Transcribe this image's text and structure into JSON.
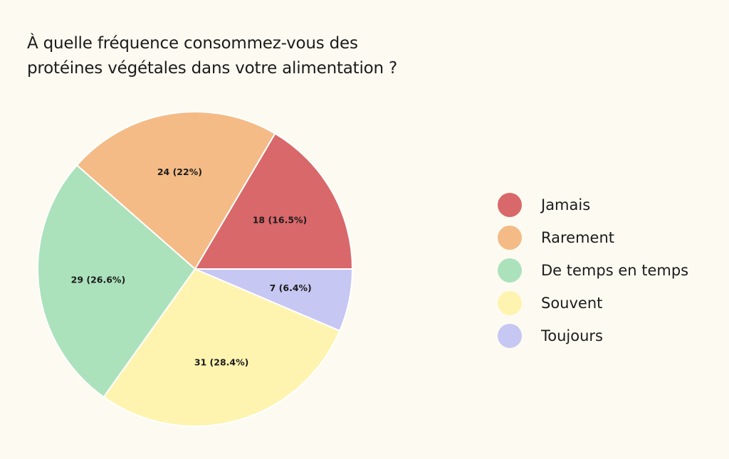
{
  "chart_data": {
    "type": "pie",
    "title_lines": [
      "À quelle fréquence consommez-vous des",
      "protéines végétales dans votre alimentation ?"
    ],
    "slices": [
      {
        "name": "Jamais",
        "value": 18,
        "label": "18 (16.5%)",
        "color": "#d9686a"
      },
      {
        "name": "Rarement",
        "value": 24,
        "label": "24 (22%)",
        "color": "#f4bb86"
      },
      {
        "name": "De temps en temps",
        "value": 29,
        "label": "29 (26.6%)",
        "color": "#abe2bc"
      },
      {
        "name": "Souvent",
        "value": 31,
        "label": "31 (28.4%)",
        "color": "#fef4b0"
      },
      {
        "name": "Toujours",
        "value": 7,
        "label": "7 (6.4%)",
        "color": "#c6c7f2"
      }
    ],
    "legend_position": "right"
  }
}
